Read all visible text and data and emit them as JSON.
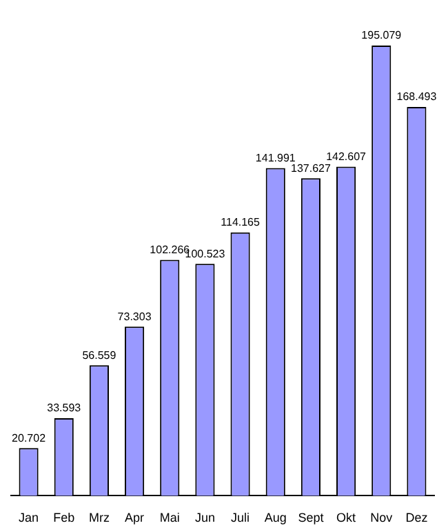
{
  "chart_data": {
    "type": "bar",
    "categories": [
      "Jan",
      "Feb",
      "Mrz",
      "Apr",
      "Mai",
      "Jun",
      "Juli",
      "Aug",
      "Sept",
      "Okt",
      "Nov",
      "Dez"
    ],
    "values": [
      20.702,
      33.593,
      56.559,
      73.303,
      102.266,
      100.523,
      114.165,
      141.991,
      137.627,
      142.607,
      195.079,
      168.493
    ],
    "color": "#9999ff",
    "data_labels": true,
    "grid": false,
    "legend": false
  }
}
